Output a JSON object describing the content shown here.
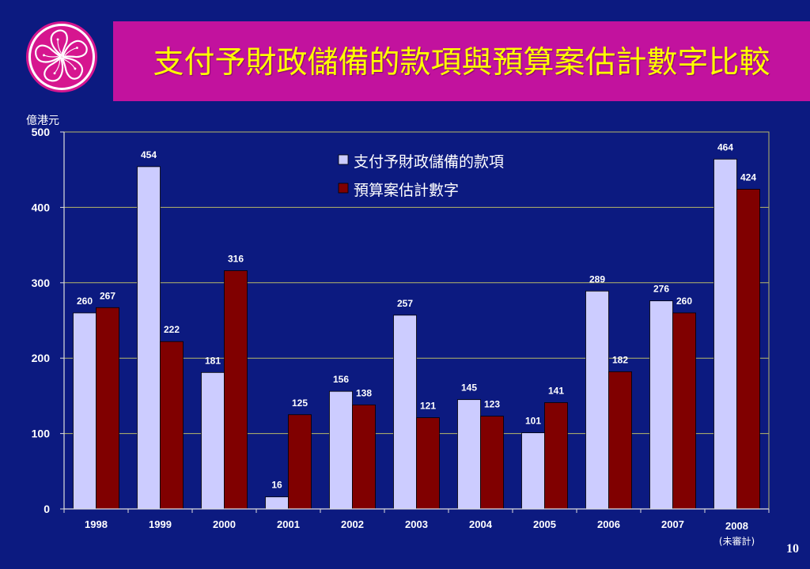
{
  "slide": {
    "title": "支付予財政儲備的款項與預算案估計數字比較",
    "page_number": "10",
    "logo_icon": "bauhinia-emblem-icon",
    "colors": {
      "background": "#0c1a80",
      "title_bar": "#c2129e",
      "title_text": "#ffff00",
      "logo": "#d6168f",
      "logo_outline": "#ffffff"
    }
  },
  "chart_data": {
    "type": "bar",
    "ylabel": "億港元",
    "ylim": [
      0,
      500
    ],
    "yticks": [
      0,
      100,
      200,
      300,
      400,
      500
    ],
    "categories": [
      "1998",
      "1999",
      "2000",
      "2001",
      "2002",
      "2003",
      "2004",
      "2005",
      "2006",
      "2007",
      "2008"
    ],
    "category_notes": {
      "2008": "(未審計)"
    },
    "series": [
      {
        "name": "支付予財政儲備的款項",
        "color": "#ccccff",
        "values": [
          260,
          454,
          181,
          16,
          156,
          257,
          145,
          101,
          289,
          276,
          464
        ]
      },
      {
        "name": "預算案估計數字",
        "color": "#800000",
        "values": [
          267,
          222,
          316,
          125,
          138,
          121,
          123,
          141,
          182,
          260,
          424
        ]
      }
    ],
    "data_labels": true,
    "grid": true,
    "gridline_color": "#b8b868",
    "axis_color": "#dedede",
    "legend": "top-center"
  }
}
